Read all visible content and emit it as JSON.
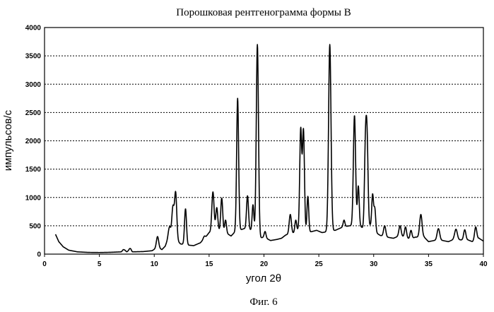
{
  "chart_data": {
    "type": "line",
    "title": "Порошковая рентгенограмма формы В",
    "caption": "Фиг. 6",
    "xlabel": "угол 2θ",
    "ylabel": "импульсов/с",
    "xlim": [
      0,
      40
    ],
    "ylim": [
      0,
      4000
    ],
    "xticks": [
      0,
      5,
      10,
      15,
      20,
      25,
      30,
      35,
      40
    ],
    "yticks": [
      0,
      500,
      1000,
      1500,
      2000,
      2500,
      3000,
      3500,
      4000
    ],
    "grid": "horizontal-dotted",
    "baseline": [
      [
        1.0,
        350
      ],
      [
        1.3,
        220
      ],
      [
        1.7,
        130
      ],
      [
        2.2,
        70
      ],
      [
        3.0,
        40
      ],
      [
        4.0,
        30
      ],
      [
        5.0,
        28
      ],
      [
        6.0,
        32
      ],
      [
        7.0,
        40
      ],
      [
        7.3,
        70
      ],
      [
        7.5,
        40
      ],
      [
        7.8,
        80
      ],
      [
        8.0,
        40
      ],
      [
        9.0,
        45
      ],
      [
        9.8,
        60
      ],
      [
        10.3,
        120
      ],
      [
        10.7,
        80
      ],
      [
        11.0,
        140
      ],
      [
        11.3,
        300
      ],
      [
        12.0,
        250
      ],
      [
        12.4,
        180
      ],
      [
        13.0,
        160
      ],
      [
        13.6,
        150
      ],
      [
        14.2,
        200
      ],
      [
        14.6,
        280
      ],
      [
        15.0,
        380
      ],
      [
        15.7,
        420
      ],
      [
        16.5,
        380
      ],
      [
        17.0,
        320
      ],
      [
        17.4,
        400
      ],
      [
        18.2,
        450
      ],
      [
        18.8,
        420
      ],
      [
        19.6,
        280
      ],
      [
        20.0,
        300
      ],
      [
        20.6,
        240
      ],
      [
        21.2,
        260
      ],
      [
        21.6,
        280
      ],
      [
        22.0,
        340
      ],
      [
        22.6,
        360
      ],
      [
        23.1,
        420
      ],
      [
        24.0,
        380
      ],
      [
        24.8,
        420
      ],
      [
        25.3,
        380
      ],
      [
        26.5,
        420
      ],
      [
        27.2,
        480
      ],
      [
        27.8,
        500
      ],
      [
        28.6,
        520
      ],
      [
        29.0,
        460
      ],
      [
        29.7,
        500
      ],
      [
        30.2,
        380
      ],
      [
        30.6,
        330
      ],
      [
        31.2,
        300
      ],
      [
        31.8,
        280
      ],
      [
        32.3,
        320
      ],
      [
        32.9,
        300
      ],
      [
        33.3,
        260
      ],
      [
        33.8,
        300
      ],
      [
        34.6,
        300
      ],
      [
        35.0,
        220
      ],
      [
        35.5,
        240
      ],
      [
        36.3,
        240
      ],
      [
        36.8,
        220
      ],
      [
        37.3,
        260
      ],
      [
        38.0,
        250
      ],
      [
        38.6,
        250
      ],
      [
        39.0,
        220
      ],
      [
        39.6,
        280
      ],
      [
        40.0,
        230
      ]
    ],
    "peaks": [
      {
        "x": 7.2,
        "y": 80,
        "w": 0.08
      },
      {
        "x": 7.8,
        "y": 100,
        "w": 0.08
      },
      {
        "x": 10.3,
        "y": 310,
        "w": 0.1
      },
      {
        "x": 11.4,
        "y": 480,
        "w": 0.1
      },
      {
        "x": 11.7,
        "y": 820,
        "w": 0.1
      },
      {
        "x": 11.95,
        "y": 1080,
        "w": 0.1
      },
      {
        "x": 12.85,
        "y": 800,
        "w": 0.09
      },
      {
        "x": 14.6,
        "y": 320,
        "w": 0.1
      },
      {
        "x": 15.35,
        "y": 1100,
        "w": 0.1
      },
      {
        "x": 15.7,
        "y": 820,
        "w": 0.09
      },
      {
        "x": 16.15,
        "y": 990,
        "w": 0.09
      },
      {
        "x": 16.5,
        "y": 600,
        "w": 0.08
      },
      {
        "x": 17.6,
        "y": 2750,
        "w": 0.09
      },
      {
        "x": 18.5,
        "y": 1030,
        "w": 0.09
      },
      {
        "x": 19.0,
        "y": 870,
        "w": 0.08
      },
      {
        "x": 19.4,
        "y": 3700,
        "w": 0.1
      },
      {
        "x": 20.1,
        "y": 400,
        "w": 0.08
      },
      {
        "x": 22.4,
        "y": 700,
        "w": 0.1
      },
      {
        "x": 22.9,
        "y": 600,
        "w": 0.08
      },
      {
        "x": 23.35,
        "y": 2200,
        "w": 0.09
      },
      {
        "x": 23.6,
        "y": 2180,
        "w": 0.09
      },
      {
        "x": 24.0,
        "y": 1020,
        "w": 0.08
      },
      {
        "x": 26.0,
        "y": 3700,
        "w": 0.11
      },
      {
        "x": 27.3,
        "y": 600,
        "w": 0.08
      },
      {
        "x": 28.25,
        "y": 2450,
        "w": 0.1
      },
      {
        "x": 28.6,
        "y": 1200,
        "w": 0.08
      },
      {
        "x": 29.25,
        "y": 1850,
        "w": 0.09
      },
      {
        "x": 29.4,
        "y": 1900,
        "w": 0.09
      },
      {
        "x": 29.9,
        "y": 1050,
        "w": 0.08
      },
      {
        "x": 30.1,
        "y": 800,
        "w": 0.08
      },
      {
        "x": 31.0,
        "y": 500,
        "w": 0.1
      },
      {
        "x": 32.4,
        "y": 500,
        "w": 0.1
      },
      {
        "x": 32.9,
        "y": 480,
        "w": 0.09
      },
      {
        "x": 33.4,
        "y": 420,
        "w": 0.09
      },
      {
        "x": 34.3,
        "y": 700,
        "w": 0.11
      },
      {
        "x": 35.9,
        "y": 450,
        "w": 0.12
      },
      {
        "x": 37.5,
        "y": 440,
        "w": 0.12
      },
      {
        "x": 38.3,
        "y": 430,
        "w": 0.1
      },
      {
        "x": 39.3,
        "y": 480,
        "w": 0.1
      }
    ]
  }
}
